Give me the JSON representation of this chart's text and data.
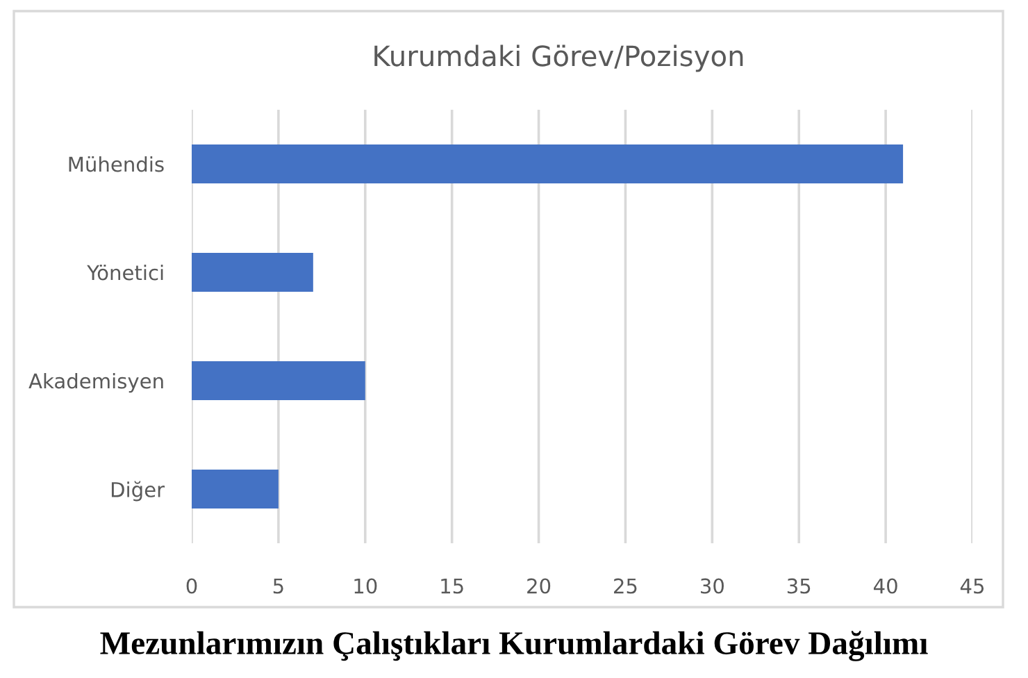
{
  "chart_data": {
    "type": "bar",
    "orientation": "horizontal",
    "title": "Kurumdaki Görev/Pozisyon",
    "categories": [
      "Mühendis",
      "Yönetici",
      "Akademisyen",
      "Diğer"
    ],
    "values": [
      41,
      7,
      10,
      5
    ],
    "color": "#4472c4",
    "xlim": [
      0,
      45
    ],
    "xticks": [
      0,
      5,
      10,
      15,
      20,
      25,
      30,
      35,
      40,
      45
    ],
    "grid": "x",
    "legend": false,
    "annotations": [
      "Mezunlarımızın Çalıştıkları Kurumlardaki Görev Dağılımı"
    ]
  }
}
